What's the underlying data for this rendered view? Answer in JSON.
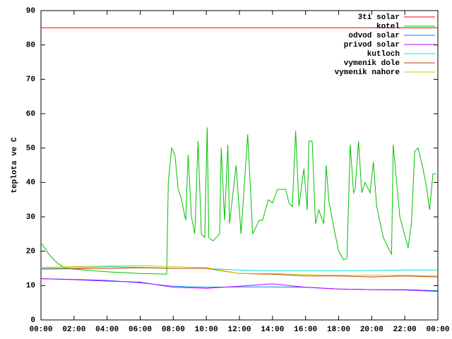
{
  "chart_data": {
    "type": "line",
    "y_label": "teplota ve C",
    "xlim": [
      0,
      24
    ],
    "ylim": [
      0,
      90
    ],
    "xticks": [
      {
        "value": 0,
        "label": "00:00"
      },
      {
        "value": 2,
        "label": "02:00"
      },
      {
        "value": 4,
        "label": "04:00"
      },
      {
        "value": 6,
        "label": "06:00"
      },
      {
        "value": 8,
        "label": "08:00"
      },
      {
        "value": 10,
        "label": "10:00"
      },
      {
        "value": 12,
        "label": "12:00"
      },
      {
        "value": 14,
        "label": "14:00"
      },
      {
        "value": 16,
        "label": "16:00"
      },
      {
        "value": 18,
        "label": "18:00"
      },
      {
        "value": 20,
        "label": "20:00"
      },
      {
        "value": 22,
        "label": "22:00"
      },
      {
        "value": 24,
        "label": "00:00"
      }
    ],
    "yticks": [
      0,
      10,
      20,
      30,
      40,
      50,
      60,
      70,
      80,
      90
    ],
    "grid": false,
    "legend": "top-right",
    "x": [
      0,
      2,
      4,
      6,
      8,
      10,
      12,
      14,
      16,
      18,
      20,
      22,
      24
    ],
    "series": [
      {
        "name": "3ti solar",
        "color": "#ff0000",
        "values": [
          85,
          85,
          85,
          85,
          85,
          85,
          85,
          85,
          85,
          85,
          85,
          85,
          85
        ]
      },
      {
        "name": "kotel",
        "color": "#00c000",
        "x": [
          0,
          0.5,
          1,
          1.5,
          2,
          4,
          6,
          7.6,
          7.7,
          7.9,
          8.1,
          8.3,
          8.5,
          8.75,
          8.9,
          9.1,
          9.3,
          9.5,
          9.7,
          9.9,
          10.05,
          10.15,
          10.4,
          10.8,
          10.9,
          11.1,
          11.3,
          11.4,
          11.8,
          12.1,
          12.5,
          12.8,
          13.2,
          13.4,
          13.75,
          14,
          14.3,
          14.8,
          15,
          15.2,
          15.4,
          15.6,
          15.9,
          16.1,
          16.2,
          16.4,
          16.6,
          16.8,
          17.1,
          17.25,
          17.4,
          17.7,
          18,
          18.3,
          18.5,
          18.7,
          18.9,
          19,
          19.2,
          19.4,
          19.6,
          19.9,
          20.1,
          20.3,
          20.7,
          21.2,
          21.3,
          21.7,
          22.2,
          22.4,
          22.6,
          22.8,
          23.1,
          23.3,
          23.5,
          23.7,
          23.9
        ],
        "values": [
          22.5,
          19,
          16.5,
          15,
          14.8,
          14,
          13.5,
          13.3,
          40,
          50,
          48,
          38,
          35,
          29,
          48,
          30,
          25,
          52,
          25,
          24,
          56,
          24,
          23,
          25,
          50,
          29,
          51,
          28,
          45,
          25,
          54,
          25,
          29,
          29,
          35,
          34,
          38,
          38,
          34,
          33,
          55,
          33,
          44,
          32,
          52,
          52,
          28,
          32,
          28,
          45,
          35,
          27,
          20,
          17.5,
          18,
          51,
          37,
          38,
          52,
          37,
          40,
          37,
          46,
          33,
          24,
          19,
          51,
          30,
          21,
          28,
          49,
          50,
          44,
          39,
          32,
          42.5,
          42.5
        ]
      },
      {
        "name": "odvod solar",
        "color": "#0080ff",
        "values": [
          12,
          11.8,
          11.5,
          10.8,
          9.8,
          9.5,
          9.6,
          9.6,
          9.5,
          9,
          8.8,
          8.8,
          8.5
        ]
      },
      {
        "name": "privod solar",
        "color": "#c000ff",
        "values": [
          12,
          11.7,
          11.3,
          11,
          9.5,
          9.2,
          9.8,
          10.5,
          9.5,
          9,
          8.8,
          8.7,
          8.3
        ]
      },
      {
        "name": "kutloch",
        "color": "#00e0e0",
        "values": [
          15,
          15.2,
          15.5,
          15.3,
          15,
          15,
          14.5,
          14.3,
          14.3,
          14.3,
          14.4,
          14.5,
          14.5
        ]
      },
      {
        "name": "vymenik dole",
        "color": "#c04000",
        "values": [
          14.8,
          14.9,
          15,
          15.2,
          15,
          15,
          13.5,
          13.3,
          12.8,
          12.8,
          12.5,
          12.8,
          12.5
        ]
      },
      {
        "name": "vymenik nahore",
        "color": "#c8c800",
        "values": [
          15.3,
          15.5,
          15.7,
          15.8,
          15.5,
          15.2,
          13.5,
          13.5,
          13.2,
          13,
          13,
          13,
          12.8
        ]
      }
    ]
  }
}
